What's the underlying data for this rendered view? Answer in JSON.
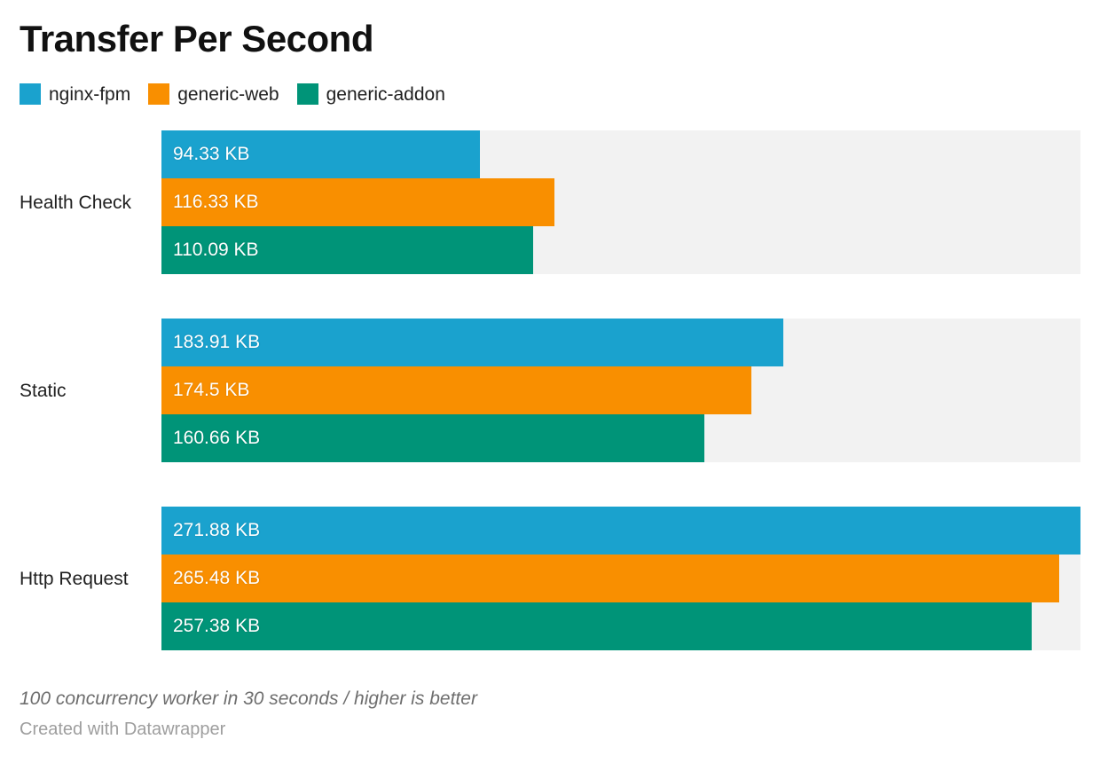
{
  "title": "Transfer Per Second",
  "footer": {
    "note": "100 concurrency worker in 30 seconds / higher is better",
    "attribution": "Created with Datawrapper"
  },
  "chart_data": {
    "type": "bar",
    "orientation": "horizontal",
    "title": "Transfer Per Second",
    "unit": "KB",
    "xlim": [
      0,
      271.88
    ],
    "grid": false,
    "legend_position": "top",
    "track_color": "#f2f2f2",
    "categories": [
      "Health Check",
      "Static",
      "Http Request"
    ],
    "series": [
      {
        "name": "nginx-fpm",
        "color": "#1aa2ce",
        "values": [
          94.33,
          183.91,
          271.88
        ],
        "labels": [
          "94.33 KB",
          "183.91 KB",
          "271.88 KB"
        ]
      },
      {
        "name": "generic-web",
        "color": "#f98f00",
        "values": [
          116.33,
          174.5,
          265.48
        ],
        "labels": [
          "116.33 KB",
          "174.5 KB",
          "265.48 KB"
        ]
      },
      {
        "name": "generic-addon",
        "color": "#009478",
        "values": [
          110.09,
          160.66,
          257.38
        ],
        "labels": [
          "110.09 KB",
          "160.66 KB",
          "257.38 KB"
        ]
      }
    ]
  }
}
